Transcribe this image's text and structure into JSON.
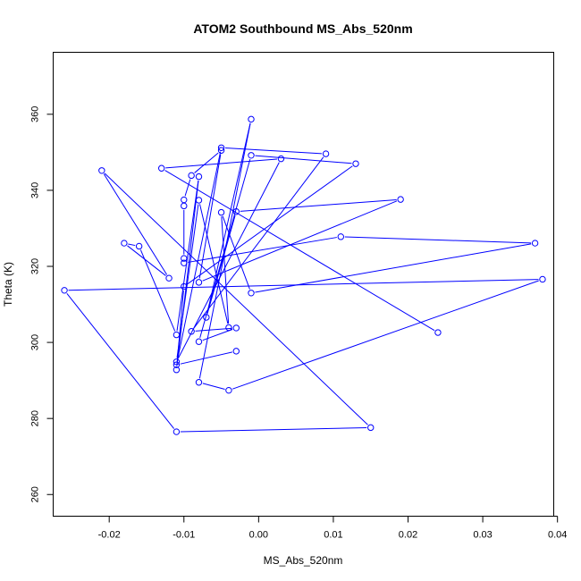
{
  "chart_data": {
    "type": "line",
    "title": "ATOM2 Southbound MS_Abs_520nm",
    "xlabel": "MS_Abs_520nm",
    "ylabel": "Theta (K)",
    "xlim": [
      -0.0275,
      0.0395
    ],
    "ylim": [
      254.3,
      376.3
    ],
    "x_ticks": [
      -0.02,
      -0.01,
      0.0,
      0.01,
      0.02,
      0.03,
      0.04
    ],
    "x_tick_labels": [
      "-0.02",
      "-0.01",
      "0.00",
      "0.01",
      "0.02",
      "0.03",
      "0.04"
    ],
    "y_ticks": [
      260,
      280,
      300,
      320,
      340,
      360
    ],
    "y_tick_labels": [
      "260",
      "280",
      "300",
      "320",
      "340",
      "360"
    ],
    "grid": false,
    "line_color": "#0000ff",
    "marker": "open-circle",
    "series": [
      {
        "points": [
          [
            -0.003,
            297.7
          ],
          [
            -0.011,
            294.1
          ],
          [
            -0.005,
            351.2
          ],
          [
            0.009,
            349.6
          ],
          [
            -0.009,
            302.9
          ],
          [
            -0.003,
            303.8
          ],
          [
            -0.008,
            300.2
          ],
          [
            -0.001,
            349.2
          ],
          [
            0.013,
            347.0
          ],
          [
            -0.01,
            314.7
          ],
          [
            -0.011,
            292.8
          ],
          [
            -0.008,
            343.6
          ],
          [
            -0.011,
            302.0
          ],
          [
            -0.016,
            325.3
          ],
          [
            -0.018,
            326.1
          ],
          [
            -0.012,
            316.9
          ],
          [
            -0.021,
            345.2
          ],
          [
            0.015,
            277.6
          ],
          [
            -0.011,
            276.5
          ],
          [
            -0.026,
            313.7
          ],
          [
            0.038,
            316.6
          ],
          [
            -0.004,
            287.4
          ],
          [
            -0.008,
            289.5
          ],
          [
            -0.001,
            358.7
          ],
          [
            -0.007,
            306.6
          ],
          [
            -0.003,
            334.4
          ],
          [
            0.019,
            337.6
          ],
          [
            -0.008,
            315.8
          ],
          [
            -0.005,
            350.5
          ],
          [
            -0.009,
            343.9
          ],
          [
            -0.01,
            337.5
          ],
          [
            -0.01,
            335.9
          ],
          [
            -0.01,
            322.1
          ],
          [
            -0.01,
            320.9
          ],
          [
            0.011,
            327.8
          ],
          [
            0.037,
            326.1
          ],
          [
            -0.001,
            313.0
          ],
          [
            -0.005,
            334.2
          ],
          [
            -0.004,
            303.9
          ],
          [
            -0.008,
            337.4
          ],
          [
            -0.011,
            294.9
          ],
          [
            0.003,
            348.3
          ],
          [
            -0.013,
            345.8
          ],
          [
            0.024,
            302.6
          ]
        ]
      }
    ]
  }
}
